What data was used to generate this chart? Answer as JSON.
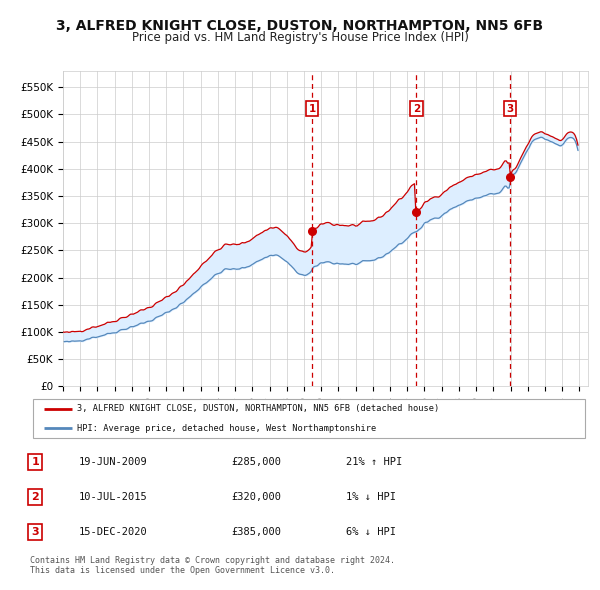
{
  "title": "3, ALFRED KNIGHT CLOSE, DUSTON, NORTHAMPTON, NN5 6FB",
  "subtitle": "Price paid vs. HM Land Registry's House Price Index (HPI)",
  "title_fontsize": 10,
  "subtitle_fontsize": 8.5,
  "xlim_start": 1995.0,
  "xlim_end": 2025.5,
  "ylim": [
    0,
    580000
  ],
  "yticks": [
    0,
    50000,
    100000,
    150000,
    200000,
    250000,
    300000,
    350000,
    400000,
    450000,
    500000,
    550000
  ],
  "ytick_labels": [
    "£0",
    "£50K",
    "£100K",
    "£150K",
    "£200K",
    "£250K",
    "£300K",
    "£350K",
    "£400K",
    "£450K",
    "£500K",
    "£550K"
  ],
  "xticks": [
    1995,
    1996,
    1997,
    1998,
    1999,
    2000,
    2001,
    2002,
    2003,
    2004,
    2005,
    2006,
    2007,
    2008,
    2009,
    2010,
    2011,
    2012,
    2013,
    2014,
    2015,
    2016,
    2017,
    2018,
    2019,
    2020,
    2021,
    2022,
    2023,
    2024,
    2025
  ],
  "background_color": "#ffffff",
  "grid_color": "#cccccc",
  "purchases": [
    {
      "date_num": 2009.47,
      "price": 285000,
      "label": "1",
      "date_str": "19-JUN-2009",
      "pct": "21%",
      "dir": "↑"
    },
    {
      "date_num": 2015.53,
      "price": 320000,
      "label": "2",
      "date_str": "10-JUL-2015",
      "pct": "1%",
      "dir": "↓"
    },
    {
      "date_num": 2020.96,
      "price": 385000,
      "label": "3",
      "date_str": "15-DEC-2020",
      "pct": "6%",
      "dir": "↓"
    }
  ],
  "red_line_color": "#cc0000",
  "blue_line_color": "#5588bb",
  "shade_color": "#ddeeff",
  "dashed_line_color": "#cc0000",
  "legend_label_red": "3, ALFRED KNIGHT CLOSE, DUSTON, NORTHAMPTON, NN5 6FB (detached house)",
  "legend_label_blue": "HPI: Average price, detached house, West Northamptonshire",
  "footer": "Contains HM Land Registry data © Crown copyright and database right 2024.\nThis data is licensed under the Open Government Licence v3.0."
}
